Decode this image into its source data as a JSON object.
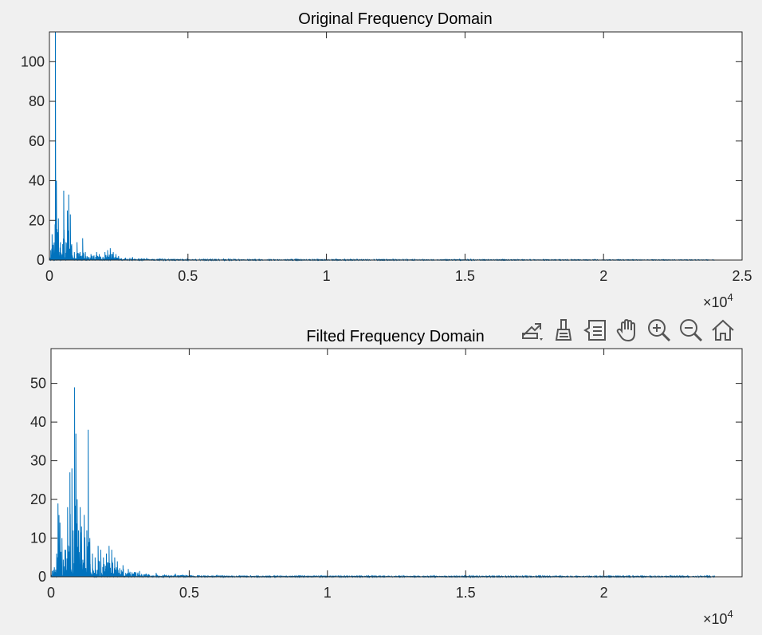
{
  "chart_data": [
    {
      "type": "line",
      "title": "Original Frequency Domain",
      "xlabel": "",
      "ylabel": "",
      "xlim": [
        0,
        25000
      ],
      "ylim": [
        0,
        115
      ],
      "xticks": [
        0,
        5000,
        10000,
        15000,
        20000,
        25000
      ],
      "xtick_labels": [
        "0",
        "0.5",
        "1",
        "1.5",
        "2",
        "2.5"
      ],
      "yticks": [
        0,
        20,
        40,
        60,
        80,
        100
      ],
      "ytick_labels": [
        "0",
        "20",
        "40",
        "60",
        "80",
        "100"
      ],
      "x_exponent": "×10",
      "x_exponent_power": "4",
      "grid": false,
      "color": "#0072bd",
      "series": [
        {
          "x_end": 24000,
          "peaks": [
            [
              0,
              2
            ],
            [
              100,
              13
            ],
            [
              150,
              10
            ],
            [
              200,
              18
            ],
            [
              220,
              115
            ],
            [
              250,
              40
            ],
            [
              300,
              14
            ],
            [
              320,
              21
            ],
            [
              400,
              9
            ],
            [
              480,
              8
            ],
            [
              520,
              35
            ],
            [
              600,
              9
            ],
            [
              650,
              25
            ],
            [
              700,
              33
            ],
            [
              760,
              23
            ],
            [
              800,
              8
            ],
            [
              900,
              4
            ],
            [
              1000,
              9
            ],
            [
              1100,
              4
            ],
            [
              1200,
              11
            ],
            [
              1300,
              4
            ],
            [
              1500,
              3
            ],
            [
              1700,
              4
            ],
            [
              1800,
              3
            ],
            [
              2000,
              4
            ],
            [
              2100,
              5
            ],
            [
              2200,
              6
            ],
            [
              2300,
              4
            ],
            [
              2400,
              3
            ],
            [
              2500,
              2
            ],
            [
              3000,
              1.5
            ],
            [
              3500,
              1
            ],
            [
              4000,
              0.8
            ],
            [
              5000,
              0.5
            ],
            [
              7000,
              0.4
            ],
            [
              24000,
              0.2
            ]
          ]
        }
      ]
    },
    {
      "type": "line",
      "title": "Filted Frequency Domain",
      "xlabel": "",
      "ylabel": "",
      "xlim": [
        0,
        25000
      ],
      "ylim": [
        0,
        59
      ],
      "xticks": [
        0,
        5000,
        10000,
        15000,
        20000
      ],
      "xtick_labels": [
        "0",
        "0.5",
        "1",
        "1.5",
        "2"
      ],
      "yticks": [
        0,
        10,
        20,
        30,
        40,
        50
      ],
      "ytick_labels": [
        "0",
        "10",
        "20",
        "30",
        "40",
        "50"
      ],
      "x_exponent": "×10",
      "x_exponent_power": "4",
      "grid": false,
      "color": "#0072bd",
      "series": [
        {
          "x_end": 24000,
          "peaks": [
            [
              0,
              1
            ],
            [
              200,
              6
            ],
            [
              270,
              39
            ],
            [
              320,
              14
            ],
            [
              400,
              10
            ],
            [
              500,
              7
            ],
            [
              600,
              18
            ],
            [
              680,
              27
            ],
            [
              760,
              28
            ],
            [
              800,
              12
            ],
            [
              850,
              49
            ],
            [
              900,
              37
            ],
            [
              950,
              20
            ],
            [
              1000,
              12
            ],
            [
              1060,
              18
            ],
            [
              1100,
              13
            ],
            [
              1200,
              16
            ],
            [
              1300,
              12
            ],
            [
              1340,
              38
            ],
            [
              1400,
              10
            ],
            [
              1500,
              6
            ],
            [
              1600,
              5
            ],
            [
              1700,
              8
            ],
            [
              1800,
              7
            ],
            [
              1900,
              5
            ],
            [
              2000,
              6
            ],
            [
              2100,
              8
            ],
            [
              2200,
              7
            ],
            [
              2300,
              5
            ],
            [
              2400,
              4
            ],
            [
              2600,
              3
            ],
            [
              2800,
              2
            ],
            [
              3200,
              1.5
            ],
            [
              3800,
              1
            ],
            [
              4500,
              0.8
            ],
            [
              6000,
              0.5
            ],
            [
              24000,
              0.3
            ]
          ]
        }
      ]
    }
  ],
  "toolbar": {
    "buttons": [
      {
        "name": "export-icon",
        "label": "Export"
      },
      {
        "name": "brush-icon",
        "label": "Brush"
      },
      {
        "name": "datatip-icon",
        "label": "Data Tips"
      },
      {
        "name": "pan-icon",
        "label": "Pan"
      },
      {
        "name": "zoom-in-icon",
        "label": "Zoom In"
      },
      {
        "name": "zoom-out-icon",
        "label": "Zoom Out"
      },
      {
        "name": "home-icon",
        "label": "Restore View"
      }
    ]
  }
}
